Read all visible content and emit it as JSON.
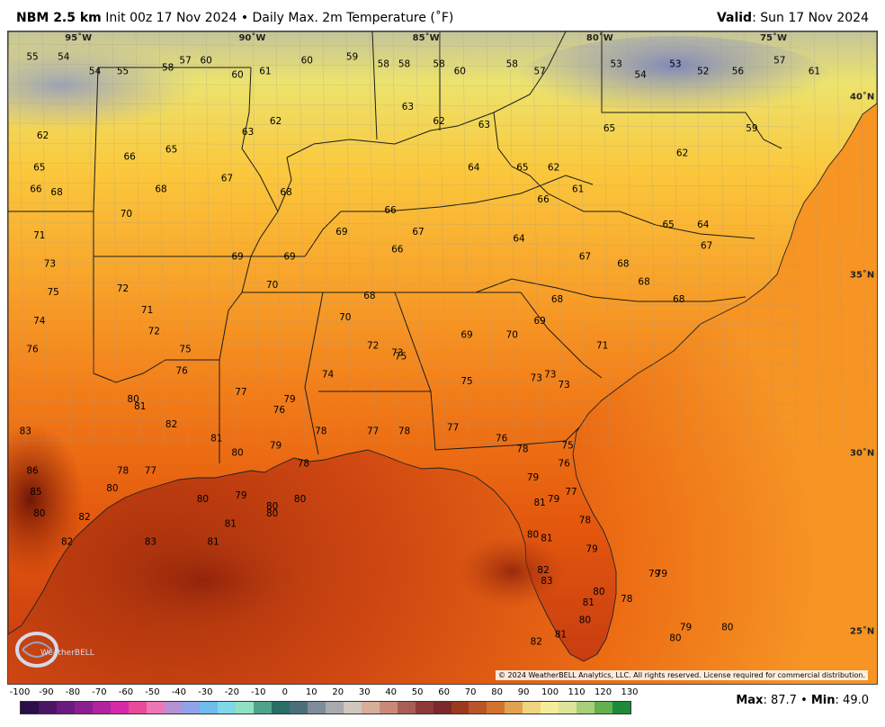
{
  "header": {
    "model": "NBM 2.5 km",
    "init": "Init 00z 17 Nov 2024",
    "separator": "•",
    "product": "Daily Max. 2m Temperature (˚F)",
    "valid_label": "Valid",
    "valid_value": ": Sun 17 Nov 2024"
  },
  "map": {
    "longitude_labels": [
      "95˚W",
      "90˚W",
      "85˚W",
      "80˚W",
      "75˚W"
    ],
    "latitude_labels": [
      "40˚N",
      "35˚N",
      "30˚N",
      "25˚N"
    ],
    "copyright": "© 2024 WeatherBELL Analytics, LLC. All rights reserved. License required for commercial distribution.",
    "logo_text": "WeatherBELL",
    "station_values": [
      {
        "v": "55",
        "lon": -96.3,
        "lat": 41.0
      },
      {
        "v": "54",
        "lon": -95.4,
        "lat": 41.0
      },
      {
        "v": "54",
        "lon": -94.5,
        "lat": 40.6
      },
      {
        "v": "55",
        "lon": -93.7,
        "lat": 40.6
      },
      {
        "v": "58",
        "lon": -92.4,
        "lat": 40.7
      },
      {
        "v": "57",
        "lon": -91.9,
        "lat": 40.9
      },
      {
        "v": "60",
        "lon": -91.3,
        "lat": 40.9
      },
      {
        "v": "60",
        "lon": -90.4,
        "lat": 40.5
      },
      {
        "v": "61",
        "lon": -89.6,
        "lat": 40.6
      },
      {
        "v": "60",
        "lon": -88.4,
        "lat": 40.9
      },
      {
        "v": "59",
        "lon": -87.1,
        "lat": 41.0
      },
      {
        "v": "58",
        "lon": -86.2,
        "lat": 40.8
      },
      {
        "v": "58",
        "lon": -85.6,
        "lat": 40.8
      },
      {
        "v": "58",
        "lon": -84.6,
        "lat": 40.8
      },
      {
        "v": "60",
        "lon": -84.0,
        "lat": 40.6
      },
      {
        "v": "58",
        "lon": -82.5,
        "lat": 40.8
      },
      {
        "v": "57",
        "lon": -81.7,
        "lat": 40.6
      },
      {
        "v": "53",
        "lon": -79.5,
        "lat": 40.8
      },
      {
        "v": "54",
        "lon": -78.8,
        "lat": 40.5
      },
      {
        "v": "53",
        "lon": -77.8,
        "lat": 40.8
      },
      {
        "v": "52",
        "lon": -77.0,
        "lat": 40.6
      },
      {
        "v": "56",
        "lon": -76.0,
        "lat": 40.6
      },
      {
        "v": "57",
        "lon": -74.8,
        "lat": 40.9
      },
      {
        "v": "61",
        "lon": -73.8,
        "lat": 40.6
      },
      {
        "v": "62",
        "lon": -96.0,
        "lat": 38.8
      },
      {
        "v": "65",
        "lon": -96.1,
        "lat": 37.9
      },
      {
        "v": "66",
        "lon": -96.2,
        "lat": 37.3
      },
      {
        "v": "68",
        "lon": -95.6,
        "lat": 37.2
      },
      {
        "v": "66",
        "lon": -93.5,
        "lat": 38.2
      },
      {
        "v": "65",
        "lon": -92.3,
        "lat": 38.4
      },
      {
        "v": "68",
        "lon": -92.6,
        "lat": 37.3
      },
      {
        "v": "70",
        "lon": -93.6,
        "lat": 36.6
      },
      {
        "v": "67",
        "lon": -90.7,
        "lat": 37.6
      },
      {
        "v": "68",
        "lon": -89.0,
        "lat": 37.2
      },
      {
        "v": "62",
        "lon": -89.3,
        "lat": 39.2
      },
      {
        "v": "63",
        "lon": -90.1,
        "lat": 38.9
      },
      {
        "v": "63",
        "lon": -85.5,
        "lat": 39.6
      },
      {
        "v": "62",
        "lon": -84.6,
        "lat": 39.2
      },
      {
        "v": "63",
        "lon": -83.3,
        "lat": 39.1
      },
      {
        "v": "64",
        "lon": -83.6,
        "lat": 37.9
      },
      {
        "v": "65",
        "lon": -82.2,
        "lat": 37.9
      },
      {
        "v": "62",
        "lon": -81.3,
        "lat": 37.9
      },
      {
        "v": "61",
        "lon": -80.6,
        "lat": 37.3
      },
      {
        "v": "66",
        "lon": -81.6,
        "lat": 37.0
      },
      {
        "v": "64",
        "lon": -82.3,
        "lat": 35.9
      },
      {
        "v": "65",
        "lon": -79.7,
        "lat": 39.0
      },
      {
        "v": "62",
        "lon": -77.6,
        "lat": 38.3
      },
      {
        "v": "59",
        "lon": -75.6,
        "lat": 39.0
      },
      {
        "v": "71",
        "lon": -96.1,
        "lat": 36.0
      },
      {
        "v": "73",
        "lon": -95.8,
        "lat": 35.2
      },
      {
        "v": "75",
        "lon": -95.7,
        "lat": 34.4
      },
      {
        "v": "74",
        "lon": -96.1,
        "lat": 33.6
      },
      {
        "v": "76",
        "lon": -96.3,
        "lat": 32.8
      },
      {
        "v": "72",
        "lon": -93.7,
        "lat": 34.5
      },
      {
        "v": "71",
        "lon": -93.0,
        "lat": 33.9
      },
      {
        "v": "75",
        "lon": -91.9,
        "lat": 32.8
      },
      {
        "v": "76",
        "lon": -92.0,
        "lat": 32.2
      },
      {
        "v": "72",
        "lon": -92.8,
        "lat": 33.3
      },
      {
        "v": "69",
        "lon": -90.4,
        "lat": 35.4
      },
      {
        "v": "70",
        "lon": -89.4,
        "lat": 34.6
      },
      {
        "v": "69",
        "lon": -88.9,
        "lat": 35.4
      },
      {
        "v": "69",
        "lon": -87.4,
        "lat": 36.1
      },
      {
        "v": "66",
        "lon": -86.0,
        "lat": 36.7
      },
      {
        "v": "67",
        "lon": -85.2,
        "lat": 36.1
      },
      {
        "v": "66",
        "lon": -85.8,
        "lat": 35.6
      },
      {
        "v": "68",
        "lon": -86.6,
        "lat": 34.3
      },
      {
        "v": "70",
        "lon": -87.3,
        "lat": 33.7
      },
      {
        "v": "72",
        "lon": -86.5,
        "lat": 32.9
      },
      {
        "v": "73",
        "lon": -85.8,
        "lat": 32.7
      },
      {
        "v": "69",
        "lon": -83.8,
        "lat": 33.2
      },
      {
        "v": "70",
        "lon": -82.5,
        "lat": 33.2
      },
      {
        "v": "69",
        "lon": -81.7,
        "lat": 33.6
      },
      {
        "v": "68",
        "lon": -81.2,
        "lat": 34.2
      },
      {
        "v": "67",
        "lon": -80.4,
        "lat": 35.4
      },
      {
        "v": "68",
        "lon": -79.3,
        "lat": 35.2
      },
      {
        "v": "68",
        "lon": -78.7,
        "lat": 34.7
      },
      {
        "v": "67",
        "lon": -76.9,
        "lat": 35.7
      },
      {
        "v": "64",
        "lon": -77.0,
        "lat": 36.3
      },
      {
        "v": "65",
        "lon": -78.0,
        "lat": 36.3
      },
      {
        "v": "68",
        "lon": -77.7,
        "lat": 34.2
      },
      {
        "v": "71",
        "lon": -79.9,
        "lat": 32.9
      },
      {
        "v": "73",
        "lon": -81.8,
        "lat": 32.0
      },
      {
        "v": "73",
        "lon": -81.0,
        "lat": 31.8
      },
      {
        "v": "73",
        "lon": -81.4,
        "lat": 32.1
      },
      {
        "v": "75",
        "lon": -83.8,
        "lat": 31.9
      },
      {
        "v": "75",
        "lon": -85.7,
        "lat": 32.6
      },
      {
        "v": "74",
        "lon": -87.8,
        "lat": 32.1
      },
      {
        "v": "76",
        "lon": -89.2,
        "lat": 31.1
      },
      {
        "v": "77",
        "lon": -90.3,
        "lat": 31.6
      },
      {
        "v": "79",
        "lon": -88.9,
        "lat": 31.4
      },
      {
        "v": "80",
        "lon": -93.4,
        "lat": 31.4
      },
      {
        "v": "81",
        "lon": -93.2,
        "lat": 31.2
      },
      {
        "v": "82",
        "lon": -92.3,
        "lat": 30.7
      },
      {
        "v": "81",
        "lon": -91.0,
        "lat": 30.3
      },
      {
        "v": "80",
        "lon": -90.4,
        "lat": 29.9
      },
      {
        "v": "79",
        "lon": -89.3,
        "lat": 30.1
      },
      {
        "v": "78",
        "lon": -88.0,
        "lat": 30.5
      },
      {
        "v": "77",
        "lon": -86.5,
        "lat": 30.5
      },
      {
        "v": "78",
        "lon": -85.6,
        "lat": 30.5
      },
      {
        "v": "77",
        "lon": -84.2,
        "lat": 30.6
      },
      {
        "v": "76",
        "lon": -82.8,
        "lat": 30.3
      },
      {
        "v": "78",
        "lon": -82.2,
        "lat": 30.0
      },
      {
        "v": "79",
        "lon": -81.9,
        "lat": 29.2
      },
      {
        "v": "76",
        "lon": -81.0,
        "lat": 29.6
      },
      {
        "v": "75",
        "lon": -80.9,
        "lat": 30.1
      },
      {
        "v": "81",
        "lon": -81.7,
        "lat": 28.5
      },
      {
        "v": "79",
        "lon": -81.3,
        "lat": 28.6
      },
      {
        "v": "77",
        "lon": -80.8,
        "lat": 28.8
      },
      {
        "v": "78",
        "lon": -80.4,
        "lat": 28.0
      },
      {
        "v": "79",
        "lon": -80.2,
        "lat": 27.2
      },
      {
        "v": "80",
        "lon": -81.9,
        "lat": 27.6
      },
      {
        "v": "81",
        "lon": -81.5,
        "lat": 27.5
      },
      {
        "v": "82",
        "lon": -81.6,
        "lat": 26.6
      },
      {
        "v": "83",
        "lon": -81.5,
        "lat": 26.3
      },
      {
        "v": "80",
        "lon": -80.0,
        "lat": 26.0
      },
      {
        "v": "81",
        "lon": -80.3,
        "lat": 25.7
      },
      {
        "v": "80",
        "lon": -80.4,
        "lat": 25.2
      },
      {
        "v": "81",
        "lon": -81.1,
        "lat": 24.8
      },
      {
        "v": "82",
        "lon": -81.8,
        "lat": 24.6
      },
      {
        "v": "78",
        "lon": -79.2,
        "lat": 25.8
      },
      {
        "v": "79",
        "lon": -78.4,
        "lat": 26.5
      },
      {
        "v": "79",
        "lon": -78.2,
        "lat": 26.5
      },
      {
        "v": "79",
        "lon": -77.5,
        "lat": 25.0
      },
      {
        "v": "80",
        "lon": -77.8,
        "lat": 24.7
      },
      {
        "v": "80",
        "lon": -76.3,
        "lat": 25.0
      },
      {
        "v": "83",
        "lon": -96.5,
        "lat": 30.5
      },
      {
        "v": "86",
        "lon": -96.3,
        "lat": 29.4
      },
      {
        "v": "85",
        "lon": -96.2,
        "lat": 28.8
      },
      {
        "v": "80",
        "lon": -96.1,
        "lat": 28.2
      },
      {
        "v": "82",
        "lon": -94.8,
        "lat": 28.1
      },
      {
        "v": "82",
        "lon": -95.3,
        "lat": 27.4
      },
      {
        "v": "83",
        "lon": -92.9,
        "lat": 27.4
      },
      {
        "v": "81",
        "lon": -91.1,
        "lat": 27.4
      },
      {
        "v": "81",
        "lon": -90.6,
        "lat": 27.9
      },
      {
        "v": "80",
        "lon": -91.4,
        "lat": 28.6
      },
      {
        "v": "79",
        "lon": -90.3,
        "lat": 28.7
      },
      {
        "v": "80",
        "lon": -89.4,
        "lat": 28.2
      },
      {
        "v": "80",
        "lon": -88.6,
        "lat": 28.6
      },
      {
        "v": "78",
        "lon": -88.5,
        "lat": 29.6
      },
      {
        "v": "80",
        "lon": -94.0,
        "lat": 28.9
      },
      {
        "v": "78",
        "lon": -93.7,
        "lat": 29.4
      },
      {
        "v": "77",
        "lon": -92.9,
        "lat": 29.4
      },
      {
        "v": "80",
        "lon": -89.4,
        "lat": 28.4
      }
    ]
  },
  "colorbar": {
    "ticks": [
      "-100",
      "-90",
      "-80",
      "-70",
      "-60",
      "-50",
      "-40",
      "-30",
      "-20",
      "-10",
      "0",
      "10",
      "20",
      "30",
      "40",
      "50",
      "60",
      "70",
      "80",
      "90",
      "100",
      "110",
      "120",
      "130"
    ],
    "colors": [
      "#2a0f4a",
      "#4a1463",
      "#6d1a7e",
      "#8c1f8f",
      "#b0249e",
      "#d42aa5",
      "#e84a9c",
      "#eb77b6",
      "#b592d4",
      "#8fa3e6",
      "#6fbbee",
      "#7fd8e8",
      "#92e0c2",
      "#4fa38a",
      "#2a6e65",
      "#4b6f7a",
      "#7e8b98",
      "#a8aab0",
      "#cfc6bd",
      "#d7ae9a",
      "#c88a78",
      "#a85e55",
      "#8e3a3a",
      "#7a2a2a",
      "#9a3a1e",
      "#b9552a",
      "#d2722f",
      "#e0a250",
      "#eed382",
      "#f4ec9a",
      "#dde49a",
      "#a8cf7a",
      "#62b04e",
      "#1f8a3a"
    ]
  },
  "stats": {
    "max_label": "Max",
    "max_value": ": 87.7",
    "sep": "•",
    "min_label": "Min",
    "min_value": ": 49.0"
  },
  "colors": {
    "cold": "#8891be",
    "cool": "#ece36e",
    "mild": "#fbb230",
    "warm": "#f06c12",
    "hot": "#c83c10",
    "hottest": "#7a1a08",
    "border": "#222222"
  }
}
